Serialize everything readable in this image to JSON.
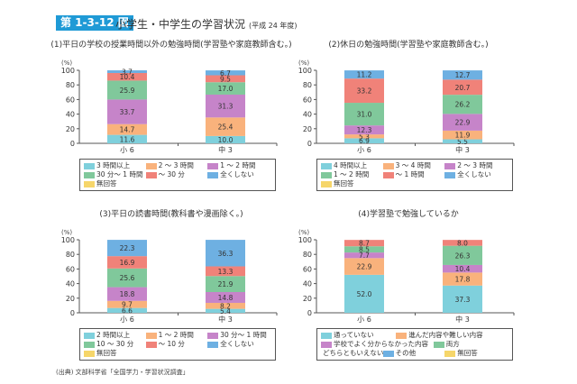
{
  "header": {
    "badge": "第 1-3-12 図",
    "title": "小学生・中学生の学習状況",
    "year": "(平成 24 年度)"
  },
  "source": "(出典) 文部科学省「全国学力・学習状況調査」",
  "chart_data": [
    {
      "type": "bar",
      "stacked": true,
      "title": "(1)平日の学校の授業時間以外の勉強時間(学習塾や家庭教師含む。)",
      "ylabel": "(%)",
      "ylim": [
        0,
        100
      ],
      "yticks": [
        0,
        20,
        40,
        60,
        80,
        100
      ],
      "categories": [
        "小 6",
        "中 3"
      ],
      "series": [
        {
          "name": "3 時間以上",
          "color": "#7fd0dc",
          "values": [
            11.6,
            10.0
          ]
        },
        {
          "name": "2 ～ 3 時間",
          "color": "#f9b27c",
          "values": [
            14.7,
            25.4
          ]
        },
        {
          "name": "1 ～ 2 時間",
          "color": "#c684c9",
          "values": [
            33.7,
            31.3
          ]
        },
        {
          "name": "30 分～ 1 時間",
          "color": "#80c89b",
          "values": [
            25.9,
            17.0
          ]
        },
        {
          "name": "～ 30 分",
          "color": "#f08279",
          "values": [
            10.4,
            9.5
          ]
        },
        {
          "name": "全くしない",
          "color": "#6eb0e2",
          "values": [
            3.7,
            6.7
          ]
        },
        {
          "name": "無回答",
          "color": "#f6d66a",
          "values": [
            0,
            0
          ]
        }
      ]
    },
    {
      "type": "bar",
      "stacked": true,
      "title": "(2)休日の勉強時間(学習塾や家庭教師含む。)",
      "ylabel": "(%)",
      "ylim": [
        0,
        100
      ],
      "yticks": [
        0,
        20,
        40,
        60,
        80,
        100
      ],
      "categories": [
        "小 6",
        "中 3"
      ],
      "series": [
        {
          "name": "4 時間以上",
          "color": "#7fd0dc",
          "values": [
            6.9,
            5.5
          ]
        },
        {
          "name": "3 ～ 4 時間",
          "color": "#f9b27c",
          "values": [
            5.3,
            11.9
          ]
        },
        {
          "name": "2 ～ 3 時間",
          "color": "#c684c9",
          "values": [
            12.3,
            22.9
          ]
        },
        {
          "name": "1 ～ 2 時間",
          "color": "#80c89b",
          "values": [
            31.0,
            26.2
          ]
        },
        {
          "name": "～ 1 時間",
          "color": "#f08279",
          "values": [
            33.2,
            20.7
          ]
        },
        {
          "name": "全くしない",
          "color": "#6eb0e2",
          "values": [
            11.2,
            12.7
          ]
        },
        {
          "name": "無回答",
          "color": "#f6d66a",
          "values": [
            0,
            0
          ]
        }
      ]
    },
    {
      "type": "bar",
      "stacked": true,
      "title": "(3)平日の読書時間(教科書や漫画除く。)",
      "ylabel": "(%)",
      "ylim": [
        0,
        100
      ],
      "yticks": [
        0,
        20,
        40,
        60,
        80,
        100
      ],
      "categories": [
        "小 6",
        "中 3"
      ],
      "series": [
        {
          "name": "2 時間以上",
          "color": "#7fd0dc",
          "values": [
            6.6,
            5.4
          ]
        },
        {
          "name": "1 ～ 2 時間",
          "color": "#f9b27c",
          "values": [
            9.7,
            8.2
          ]
        },
        {
          "name": "30 分～ 1 時間",
          "color": "#c684c9",
          "values": [
            18.8,
            14.8
          ]
        },
        {
          "name": "10 ～ 30 分",
          "color": "#80c89b",
          "values": [
            25.6,
            21.9
          ]
        },
        {
          "name": "～ 10 分",
          "color": "#f08279",
          "values": [
            16.9,
            13.3
          ]
        },
        {
          "name": "全くしない",
          "color": "#6eb0e2",
          "values": [
            22.3,
            36.3
          ]
        },
        {
          "name": "無回答",
          "color": "#f6d66a",
          "values": [
            0,
            0
          ]
        }
      ]
    },
    {
      "type": "bar",
      "stacked": true,
      "title": "(4)学習塾で勉強しているか",
      "ylabel": "(%)",
      "ylim": [
        0,
        100
      ],
      "yticks": [
        0,
        20,
        40,
        60,
        80,
        100
      ],
      "categories": [
        "小 6",
        "中 3"
      ],
      "series": [
        {
          "name": "通っていない",
          "color": "#7fd0dc",
          "values": [
            52.0,
            37.3
          ]
        },
        {
          "name": "進んだ内容や難しい内容",
          "color": "#f9b27c",
          "values": [
            22.9,
            17.8
          ]
        },
        {
          "name": "学校でよく分からなかった内容",
          "color": "#c684c9",
          "values": [
            7.7,
            10.4
          ]
        },
        {
          "name": "両方",
          "color": "#80c89b",
          "values": [
            8.5,
            26.3
          ]
        },
        {
          "name": "どちらともいえない",
          "color": "#f08279",
          "values": [
            8.7,
            8.0
          ]
        },
        {
          "name": "その他",
          "color": "#6eb0e2",
          "values": [
            0,
            0
          ]
        },
        {
          "name": "無回答",
          "color": "#f6d66a",
          "values": [
            0,
            0
          ]
        }
      ]
    }
  ]
}
